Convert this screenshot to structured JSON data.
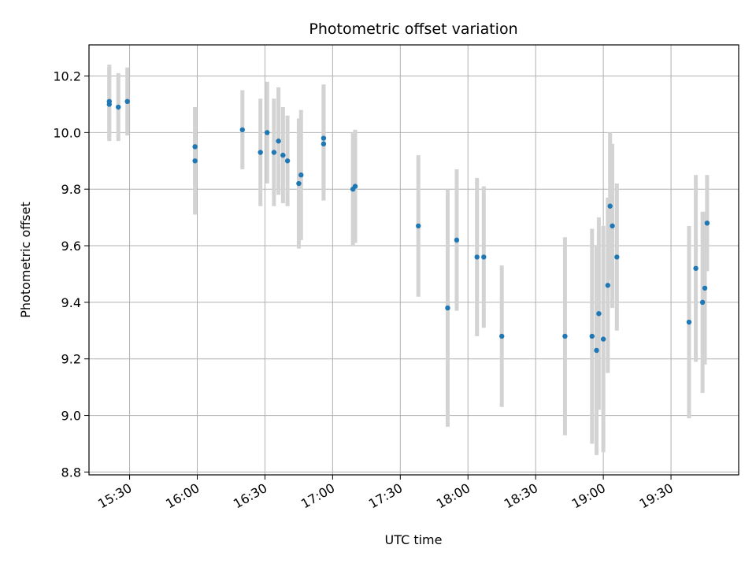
{
  "chart_data": {
    "type": "scatter",
    "title": "Photometric offset variation",
    "xlabel": "UTC time",
    "ylabel": "Photometric offset",
    "xlim": [
      "15:12",
      "20:00"
    ],
    "ylim": [
      8.79,
      10.31
    ],
    "x_ticks": [
      "15:30",
      "16:00",
      "16:30",
      "17:00",
      "17:30",
      "18:00",
      "18:30",
      "19:00",
      "19:30"
    ],
    "y_ticks": [
      8.8,
      9.0,
      9.2,
      9.4,
      9.6,
      9.8,
      10.0,
      10.2
    ],
    "grid": true,
    "marker_color": "#1f77b4",
    "errorbar_color": "#d3d3d3",
    "points": [
      {
        "x": "15:21",
        "y": 10.1,
        "yerr": 0.13
      },
      {
        "x": "15:21",
        "y": 10.11,
        "yerr": 0.13
      },
      {
        "x": "15:25",
        "y": 10.09,
        "yerr": 0.12
      },
      {
        "x": "15:29",
        "y": 10.11,
        "yerr": 0.12
      },
      {
        "x": "15:59",
        "y": 9.95,
        "yerr": 0.14
      },
      {
        "x": "15:59",
        "y": 9.9,
        "yerr": 0.19
      },
      {
        "x": "16:20",
        "y": 10.01,
        "yerr": 0.14
      },
      {
        "x": "16:28",
        "y": 9.93,
        "yerr": 0.19
      },
      {
        "x": "16:31",
        "y": 10.0,
        "yerr": 0.18
      },
      {
        "x": "16:34",
        "y": 9.93,
        "yerr": 0.19
      },
      {
        "x": "16:36",
        "y": 9.97,
        "yerr": 0.19
      },
      {
        "x": "16:38",
        "y": 9.92,
        "yerr": 0.17
      },
      {
        "x": "16:40",
        "y": 9.9,
        "yerr": 0.16
      },
      {
        "x": "16:45",
        "y": 9.82,
        "yerr": 0.23
      },
      {
        "x": "16:46",
        "y": 9.85,
        "yerr": 0.23
      },
      {
        "x": "16:56",
        "y": 9.98,
        "yerr": 0.19
      },
      {
        "x": "16:56",
        "y": 9.96,
        "yerr": 0.2
      },
      {
        "x": "17:09",
        "y": 9.8,
        "yerr": 0.2
      },
      {
        "x": "17:10",
        "y": 9.81,
        "yerr": 0.2
      },
      {
        "x": "17:38",
        "y": 9.67,
        "yerr": 0.25
      },
      {
        "x": "17:51",
        "y": 9.38,
        "yerr": 0.42
      },
      {
        "x": "17:55",
        "y": 9.62,
        "yerr": 0.25
      },
      {
        "x": "18:04",
        "y": 9.56,
        "yerr": 0.28
      },
      {
        "x": "18:07",
        "y": 9.56,
        "yerr": 0.25
      },
      {
        "x": "18:15",
        "y": 9.28,
        "yerr": 0.25
      },
      {
        "x": "18:43",
        "y": 9.28,
        "yerr": 0.35
      },
      {
        "x": "18:55",
        "y": 9.28,
        "yerr": 0.38
      },
      {
        "x": "18:57",
        "y": 9.23,
        "yerr": 0.37
      },
      {
        "x": "18:58",
        "y": 9.36,
        "yerr": 0.34
      },
      {
        "x": "19:00",
        "y": 9.27,
        "yerr": 0.4
      },
      {
        "x": "19:02",
        "y": 9.46,
        "yerr": 0.31
      },
      {
        "x": "19:03",
        "y": 9.74,
        "yerr": 0.26
      },
      {
        "x": "19:04",
        "y": 9.67,
        "yerr": 0.29
      },
      {
        "x": "19:06",
        "y": 9.56,
        "yerr": 0.26
      },
      {
        "x": "19:38",
        "y": 9.33,
        "yerr": 0.34
      },
      {
        "x": "19:41",
        "y": 9.52,
        "yerr": 0.33
      },
      {
        "x": "19:44",
        "y": 9.4,
        "yerr": 0.32
      },
      {
        "x": "19:45",
        "y": 9.45,
        "yerr": 0.27
      },
      {
        "x": "19:46",
        "y": 9.68,
        "yerr": 0.17
      }
    ]
  }
}
